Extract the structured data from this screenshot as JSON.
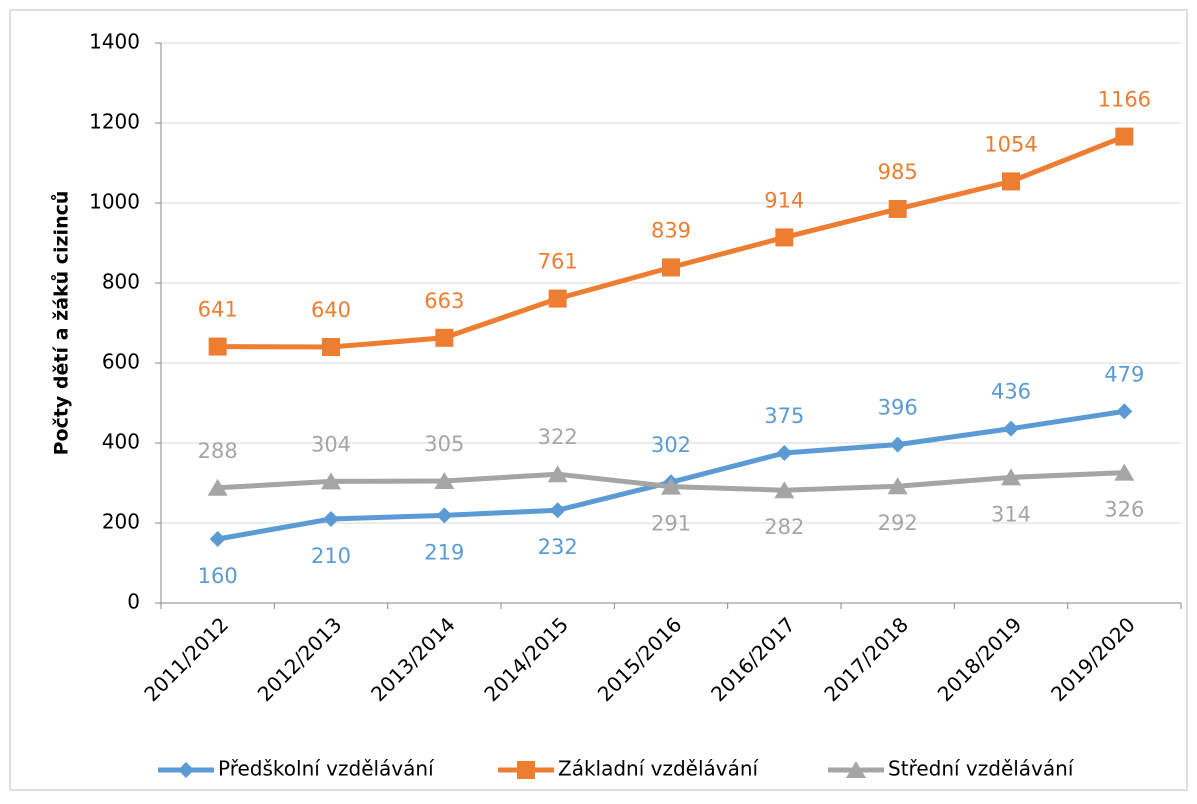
{
  "chart_data": {
    "type": "line",
    "y_label": "Počty dětí a žáků cizinců",
    "categories": [
      "2011/2012",
      "2012/2013",
      "2013/2014",
      "2014/2015",
      "2015/2016",
      "2016/2017",
      "2017/2018",
      "2018/2019",
      "2019/2020"
    ],
    "series": [
      {
        "name": "Předškolní vzdělávání",
        "color": "#5b9bd5",
        "marker": "diamond",
        "values": [
          160,
          210,
          219,
          232,
          302,
          375,
          396,
          436,
          479
        ]
      },
      {
        "name": "Základní vzdělávání",
        "color": "#ed7d31",
        "marker": "square",
        "values": [
          641,
          640,
          663,
          761,
          839,
          914,
          985,
          1054,
          1166
        ]
      },
      {
        "name": "Střední vzdělávání",
        "color": "#a5a5a5",
        "marker": "triangle",
        "values": [
          288,
          304,
          305,
          322,
          291,
          282,
          292,
          314,
          326
        ]
      }
    ],
    "ylim": [
      0,
      1400
    ],
    "yticks": [
      0,
      200,
      400,
      600,
      800,
      1000,
      1200,
      1400
    ],
    "grid": true,
    "legend": "bottom"
  }
}
